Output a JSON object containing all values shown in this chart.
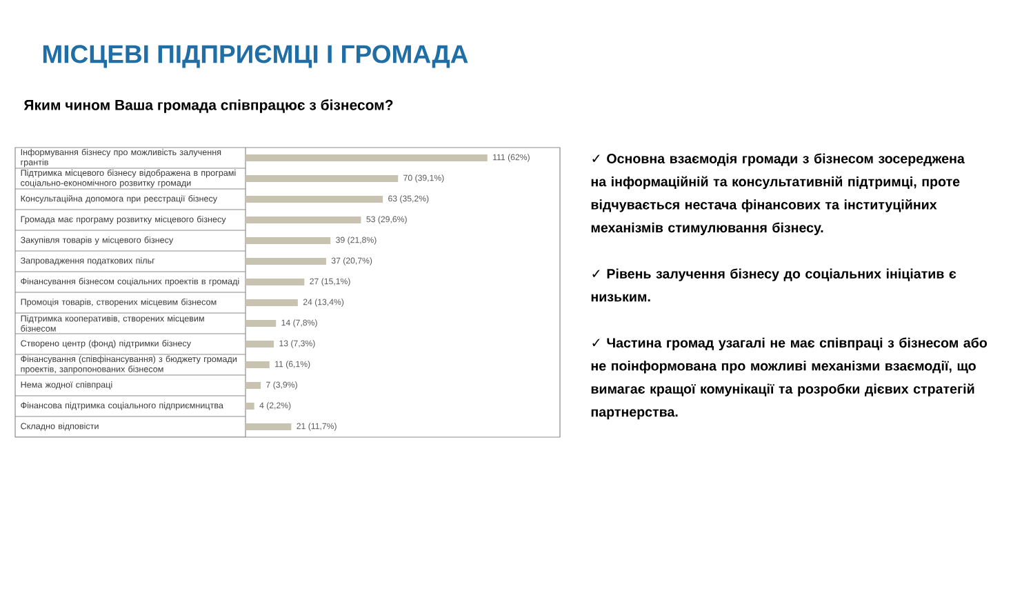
{
  "chart_data": {
    "type": "bar",
    "orientation": "horizontal",
    "title": "МІСЦЕВІ ПІДПРИЄМЦІ І ГРОМАДА",
    "subtitle": "Яким чином Ваша громада співпрацює з бізнесом?",
    "categories": [
      "Інформування бізнесу про можливість залучення грантів",
      "Підтримка місцевого бізнесу відображена в програмі соціально-економічного розвитку громади",
      "Консультаційна допомога при реєстрації бізнесу",
      "Громада має програму розвитку місцевого бізнесу",
      "Закупівля товарів у місцевого бізнесу",
      "Запровадження податкових пільг",
      "Фінансування бізнесом соціальних проектів в громаді",
      "Промоція товарів, створених місцевим бізнесом",
      "Підтримка кооперативів, створених місцевим бізнесом",
      "Створено центр (фонд) підтримки бізнесу",
      "Фінансування (співфінансування) з бюджету громади проектів, запропонованих бізнесом",
      "Нема жодної співпраці",
      "Фінансова підтримка соціального підприємництва",
      "Складно відповісти"
    ],
    "values": [
      111,
      70,
      63,
      53,
      39,
      37,
      27,
      24,
      14,
      13,
      11,
      7,
      4,
      21
    ],
    "value_labels": [
      "111 (62%)",
      "70 (39,1%)",
      "63 (35,2%)",
      "53 (29,6%)",
      "39 (21,8%)",
      "37 (20,7%)",
      "27 (15,1%)",
      "24 (13,4%)",
      "14 (7,8%)",
      "13 (7,3%)",
      "11 (6,1%)",
      "7 (3,9%)",
      "4 (2,2%)",
      "21 (11,7%)"
    ],
    "color": "#c8c2b0",
    "tick_labels": "y",
    "annotations": [
      "✓ Основна взаємодія громади з бізнесом зосереджена на інформаційній та консультативній підтримці, проте відчувається нестача фінансових та інституційних механізмів стимулювання бізнесу.",
      "✓ Рівень залучення бізнесу до соціальних ініціатив є низьким.",
      "✓ Частина громад узагалі не має співпраці з бізнесом або не поінформована про можливі механізми взаємодії, що вимагає кращої комунікації та розробки дієвих стратегій партнерства."
    ]
  }
}
